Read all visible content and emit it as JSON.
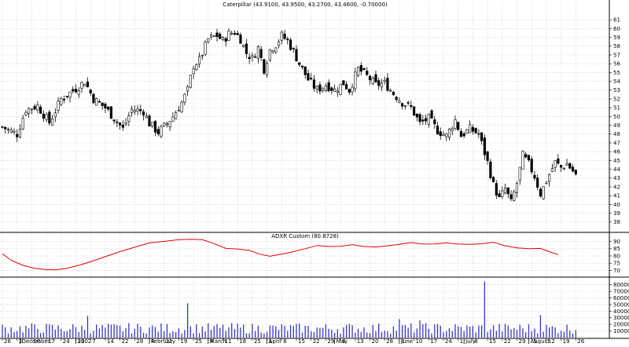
{
  "chart_data": [
    {
      "type": "candlestick",
      "title": "Caterpillar (43.9100, 43.9500, 43.2700, 43.4600, -0.70000)",
      "ylim": [
        37,
        62
      ],
      "ytick_labels": [
        38,
        39,
        40,
        41,
        42,
        43,
        44,
        45,
        46,
        47,
        48,
        49,
        50,
        51,
        52,
        53,
        54,
        55,
        56,
        57,
        58,
        59,
        60,
        61
      ],
      "x_labels": [
        {
          "i": 0,
          "t": "26"
        },
        {
          "i": 5,
          "t": "3"
        },
        {
          "i": 10,
          "t": "10"
        },
        {
          "i": 15,
          "t": "17"
        },
        {
          "i": 20,
          "t": "24"
        },
        {
          "i": 25,
          "t": "31"
        },
        {
          "i": 30,
          "t": "7"
        },
        {
          "i": 35,
          "t": "14"
        },
        {
          "i": 40,
          "t": "22"
        },
        {
          "i": 45,
          "t": "28"
        },
        {
          "i": 50,
          "t": "4"
        },
        {
          "i": 55,
          "t": "11"
        },
        {
          "i": 60,
          "t": "19"
        },
        {
          "i": 65,
          "t": "25"
        },
        {
          "i": 70,
          "t": "4"
        },
        {
          "i": 75,
          "t": "11"
        },
        {
          "i": 80,
          "t": "18"
        },
        {
          "i": 85,
          "t": "25"
        },
        {
          "i": 90,
          "t": "1"
        },
        {
          "i": 95,
          "t": "8"
        },
        {
          "i": 100,
          "t": "15"
        },
        {
          "i": 105,
          "t": "22"
        },
        {
          "i": 110,
          "t": "29"
        },
        {
          "i": 115,
          "t": "6"
        },
        {
          "i": 120,
          "t": "13"
        },
        {
          "i": 125,
          "t": "20"
        },
        {
          "i": 130,
          "t": "28"
        },
        {
          "i": 135,
          "t": "3"
        },
        {
          "i": 140,
          "t": "10"
        },
        {
          "i": 145,
          "t": "17"
        },
        {
          "i": 150,
          "t": "24"
        },
        {
          "i": 155,
          "t": "1"
        },
        {
          "i": 160,
          "t": "8"
        },
        {
          "i": 165,
          "t": "15"
        },
        {
          "i": 170,
          "t": "22"
        },
        {
          "i": 175,
          "t": "29"
        },
        {
          "i": 180,
          "t": "5"
        },
        {
          "i": 185,
          "t": "12"
        },
        {
          "i": 190,
          "t": "19"
        },
        {
          "i": 195,
          "t": "26"
        }
      ],
      "month_labels": [
        {
          "i": 6,
          "t": "December"
        },
        {
          "i": 25,
          "t": "2002"
        },
        {
          "i": 50,
          "t": "February"
        },
        {
          "i": 70,
          "t": "March"
        },
        {
          "i": 90,
          "t": "April"
        },
        {
          "i": 113,
          "t": "May"
        },
        {
          "i": 135,
          "t": "June"
        },
        {
          "i": 157,
          "t": "July"
        },
        {
          "i": 179,
          "t": "August"
        }
      ],
      "close_path": [
        [
          0,
          48.8
        ],
        [
          5,
          48.0
        ],
        [
          8,
          50.8
        ],
        [
          12,
          51.2
        ],
        [
          16,
          49.3
        ],
        [
          20,
          52.0
        ],
        [
          26,
          53.4
        ],
        [
          28,
          54.0
        ],
        [
          31,
          52.0
        ],
        [
          35,
          51.0
        ],
        [
          38,
          49.8
        ],
        [
          41,
          48.6
        ],
        [
          44,
          50.8
        ],
        [
          48,
          50.6
        ],
        [
          50,
          49.2
        ],
        [
          53,
          48.2
        ],
        [
          56,
          49.2
        ],
        [
          58,
          50.0
        ],
        [
          61,
          51.6
        ],
        [
          63,
          53.0
        ],
        [
          65,
          55.8
        ],
        [
          67,
          56.4
        ],
        [
          70,
          58.8
        ],
        [
          73,
          59.2
        ],
        [
          75,
          58.6
        ],
        [
          77,
          59.4
        ],
        [
          79,
          59.6
        ],
        [
          81,
          58.8
        ],
        [
          83,
          57.2
        ],
        [
          85,
          56.6
        ],
        [
          87,
          57.8
        ],
        [
          89,
          55.4
        ],
        [
          91,
          57.6
        ],
        [
          93,
          58.2
        ],
        [
          95,
          59.2
        ],
        [
          97,
          58.6
        ],
        [
          99,
          57.4
        ],
        [
          101,
          56.0
        ],
        [
          104,
          54.2
        ],
        [
          107,
          53.0
        ],
        [
          110,
          53.6
        ],
        [
          113,
          53.0
        ],
        [
          116,
          53.8
        ],
        [
          118,
          53.0
        ],
        [
          121,
          55.4
        ],
        [
          124,
          54.6
        ],
        [
          127,
          53.6
        ],
        [
          130,
          53.8
        ],
        [
          133,
          52.6
        ],
        [
          136,
          51.6
        ],
        [
          139,
          51.0
        ],
        [
          142,
          49.2
        ],
        [
          145,
          49.8
        ],
        [
          148,
          48.4
        ],
        [
          151,
          47.8
        ],
        [
          154,
          49.6
        ],
        [
          156,
          47.8
        ],
        [
          159,
          48.6
        ],
        [
          162,
          48.0
        ],
        [
          165,
          44.8
        ],
        [
          167,
          42.2
        ],
        [
          169,
          40.6
        ],
        [
          171,
          41.8
        ],
        [
          173,
          40.2
        ],
        [
          175,
          42.4
        ],
        [
          177,
          45.6
        ],
        [
          179,
          44.6
        ],
        [
          181,
          43.2
        ],
        [
          183,
          41.2
        ],
        [
          186,
          43.4
        ],
        [
          188,
          44.8
        ],
        [
          190,
          44.2
        ],
        [
          192,
          44.6
        ],
        [
          194,
          43.8
        ],
        [
          195,
          43.46
        ]
      ],
      "ohlc_note": "Daily candles generated from close_path with small body/wick offsets; last bar O 43.91 H 43.95 L 43.27 C 43.46.",
      "last_bar": {
        "open": 43.91,
        "high": 43.95,
        "low": 43.27,
        "close": 43.46
      }
    },
    {
      "type": "line",
      "title": "ADXR Custom (80.8728)",
      "ylim": [
        67,
        93
      ],
      "ytick_labels": [
        70,
        75,
        80,
        85,
        90
      ],
      "series": [
        {
          "color": "#e00000",
          "points": [
            [
              0,
              81.5
            ],
            [
              3,
              77
            ],
            [
              7,
              73.5
            ],
            [
              11,
              71.5
            ],
            [
              15,
              70.6
            ],
            [
              18,
              70.4
            ],
            [
              22,
              71.5
            ],
            [
              26,
              73.5
            ],
            [
              30,
              76
            ],
            [
              35,
              79.5
            ],
            [
              40,
              83
            ],
            [
              45,
              86
            ],
            [
              50,
              89
            ],
            [
              55,
              90
            ],
            [
              60,
              91.2
            ],
            [
              64,
              91.5
            ],
            [
              68,
              91.2
            ],
            [
              72,
              88.5
            ],
            [
              76,
              85.2
            ],
            [
              80,
              84.8
            ],
            [
              84,
              83.8
            ],
            [
              88,
              81
            ],
            [
              91,
              79.8
            ],
            [
              95,
              81.2
            ],
            [
              99,
              83
            ],
            [
              103,
              85
            ],
            [
              107,
              87.2
            ],
            [
              111,
              86.5
            ],
            [
              115,
              86.6
            ],
            [
              119,
              87.8
            ],
            [
              123,
              86.5
            ],
            [
              127,
              86.2
            ],
            [
              131,
              87
            ],
            [
              135,
              88
            ],
            [
              139,
              89.2
            ],
            [
              143,
              88.2
            ],
            [
              147,
              88.3
            ],
            [
              151,
              89
            ],
            [
              155,
              88.2
            ],
            [
              159,
              88
            ],
            [
              163,
              88.4
            ],
            [
              167,
              89.4
            ],
            [
              171,
              87
            ],
            [
              175,
              85.6
            ],
            [
              179,
              85
            ],
            [
              183,
              85.2
            ],
            [
              186,
              83
            ],
            [
              189,
              80.9
            ]
          ]
        }
      ]
    },
    {
      "type": "bar",
      "title": "",
      "ylim": [
        0,
        88000
      ],
      "ytick_labels": [
        10000,
        20000,
        30000,
        40000,
        50000,
        60000,
        70000,
        80000
      ],
      "color": "#3535c8",
      "spikes": [
        [
          63,
          52000
        ],
        [
          164,
          85000
        ],
        [
          135,
          28000
        ],
        [
          29,
          33000
        ],
        [
          142,
          26000
        ],
        [
          183,
          34000
        ]
      ]
    }
  ]
}
